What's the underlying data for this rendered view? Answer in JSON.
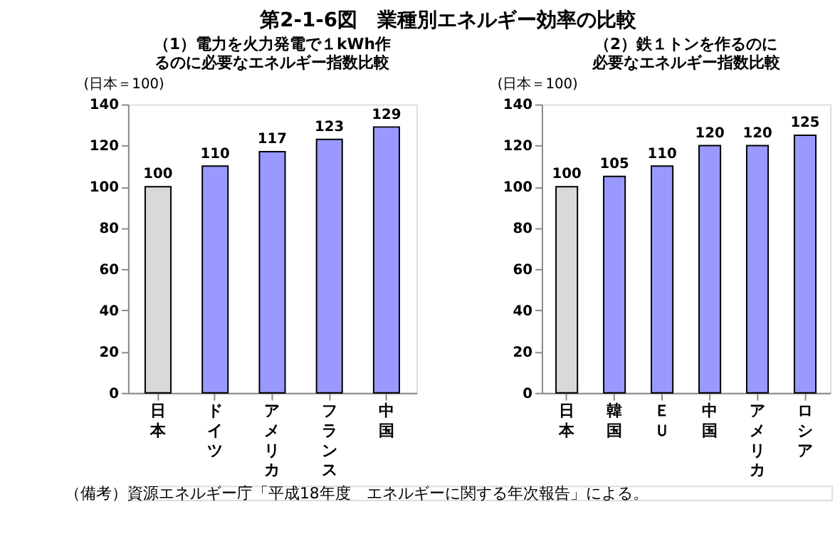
{
  "chart_data": [
    {
      "type": "other",
      "title": "第2-1-6図　業種別エネルギー効率の比較",
      "annotations": [
        "（備考）資源エネルギー庁「平成18年度　エネルギーに関する年次報告」による。"
      ]
    },
    {
      "type": "bar",
      "title": "（1）電力を火力発電で１kWh作るのに必要なエネルギー指数比較",
      "ylabel": "(日本＝100)",
      "categories": [
        "日本",
        "ドイツ",
        "アメリカ",
        "フランス",
        "中国"
      ],
      "values": [
        100,
        110,
        117,
        123,
        129
      ],
      "colors": [
        "#d9d9d9",
        "#9999ff",
        "#9999ff",
        "#9999ff",
        "#9999ff"
      ],
      "ylim": [
        0,
        140
      ],
      "yticks": [
        0,
        20,
        40,
        60,
        80,
        100,
        120,
        140
      ],
      "data_labels": true,
      "grid": false
    },
    {
      "type": "bar",
      "title": "（2）鉄１トンを作るのに必要なエネルギー指数比較",
      "ylabel": "(日本＝100)",
      "categories": [
        "日本",
        "韓国",
        "ＥＵ",
        "中国",
        "アメリカ",
        "ロシア"
      ],
      "values": [
        100,
        105,
        110,
        120,
        120,
        125
      ],
      "colors": [
        "#d9d9d9",
        "#9999ff",
        "#9999ff",
        "#9999ff",
        "#9999ff",
        "#9999ff"
      ],
      "ylim": [
        0,
        140
      ],
      "yticks": [
        0,
        20,
        40,
        60,
        80,
        100,
        120,
        140
      ],
      "data_labels": true,
      "grid": false
    }
  ]
}
